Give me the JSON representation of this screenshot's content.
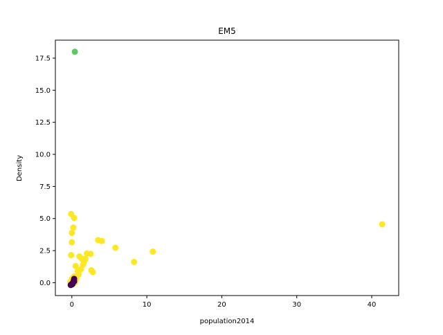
{
  "chart_data": {
    "type": "scatter",
    "title": "EM5",
    "xlabel": "population2014",
    "ylabel": "Density",
    "xlim": [
      -2.2,
      43.6
    ],
    "ylim": [
      -1.0,
      18.9
    ],
    "x_ticks": [
      0,
      10,
      20,
      30,
      40
    ],
    "y_ticks": [
      0.0,
      2.5,
      5.0,
      7.5,
      10.0,
      12.5,
      15.0,
      17.5
    ],
    "x_tick_labels": [
      "0",
      "10",
      "20",
      "30",
      "40"
    ],
    "y_tick_labels": [
      "0.0",
      "2.5",
      "5.0",
      "7.5",
      "10.0",
      "12.5",
      "15.0",
      "17.5"
    ],
    "grid": false,
    "legend": "none",
    "colors": {
      "yellow": "#fde725",
      "green": "#5ec962",
      "purple": "#440154"
    },
    "series": [
      {
        "color": "#fde725",
        "points": [
          [
            41.4,
            4.55
          ],
          [
            10.8,
            2.42
          ],
          [
            8.3,
            1.62
          ],
          [
            5.8,
            2.72
          ],
          [
            3.5,
            3.32
          ],
          [
            4.0,
            3.25
          ],
          [
            2.5,
            2.25
          ],
          [
            2.0,
            2.28
          ],
          [
            2.6,
            0.97
          ],
          [
            2.8,
            0.82
          ],
          [
            1.8,
            1.85
          ],
          [
            1.5,
            1.4
          ],
          [
            1.2,
            1.05
          ],
          [
            1.0,
            2.05
          ],
          [
            1.3,
            1.88
          ],
          [
            0.9,
            0.65
          ],
          [
            0.7,
            0.55
          ],
          [
            0.5,
            1.3
          ],
          [
            0.3,
            5.05
          ],
          [
            -0.1,
            5.35
          ],
          [
            0.2,
            4.3
          ],
          [
            0.0,
            3.88
          ],
          [
            0.0,
            3.15
          ],
          [
            -0.1,
            2.15
          ],
          [
            0.6,
            0.3
          ],
          [
            0.4,
            0.0
          ],
          [
            0.3,
            0.5
          ],
          [
            0.5,
            0.2
          ],
          [
            0.1,
            0.1
          ],
          [
            0.2,
            0.4
          ],
          [
            0.8,
            0.9
          ],
          [
            1.6,
            1.6
          ],
          [
            0.4,
            0.2
          ],
          [
            -0.2,
            0.05
          ],
          [
            0.0,
            0.3
          ]
        ]
      },
      {
        "color": "#5ec962",
        "points": [
          [
            0.4,
            18.0
          ]
        ]
      },
      {
        "color": "#440154",
        "points": [
          [
            -0.1,
            -0.15
          ],
          [
            0.0,
            -0.1
          ],
          [
            0.1,
            -0.05
          ],
          [
            0.2,
            0.05
          ],
          [
            0.25,
            0.15
          ],
          [
            0.3,
            0.3
          ],
          [
            0.15,
            0.0
          ],
          [
            0.05,
            -0.12
          ],
          [
            -0.15,
            -0.18
          ],
          [
            0.3,
            0.1
          ]
        ]
      }
    ]
  }
}
